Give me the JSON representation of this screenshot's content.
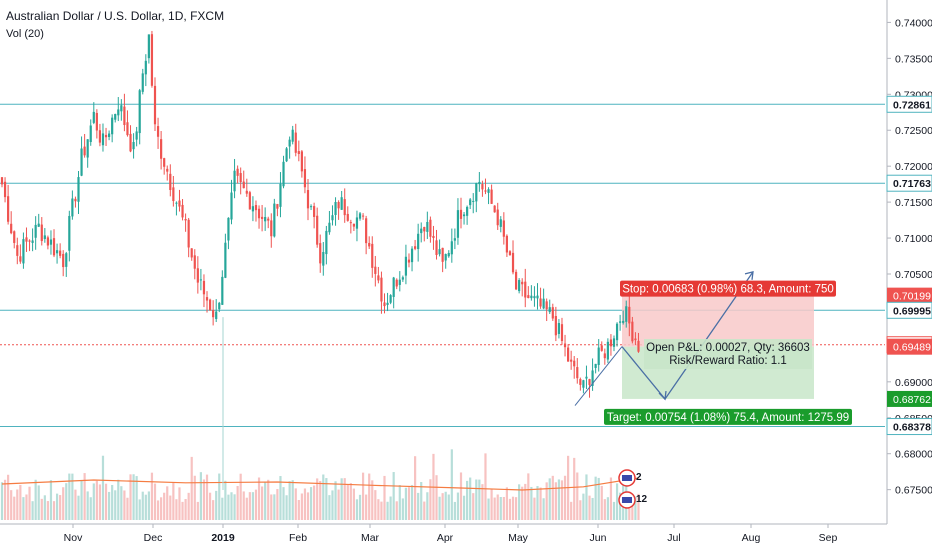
{
  "legend": {
    "title": "Australian Dollar / U.S. Dollar, 1D, FXCM",
    "volume_label": "Vol (20)"
  },
  "colors": {
    "up": "#26a69a",
    "down": "#ef5350",
    "hline": "#4fb3bf",
    "current": "#ef5350",
    "vol_ma": "#f57c42",
    "stop_fill": "#f8c9c9",
    "target_fill": "#c8e6c9",
    "stop_label": "#e53935",
    "target_label": "#1a9c2c"
  },
  "chart_data": {
    "type": "candlestick",
    "x_ticks": [
      "Nov",
      "Dec",
      "2019",
      "Feb",
      "Mar",
      "Apr",
      "May",
      "Jun",
      "Jul",
      "Aug",
      "Sep"
    ],
    "y_ticks": [
      "0.74000",
      "0.73500",
      "0.73000",
      "0.72500",
      "0.72000",
      "0.71500",
      "0.71000",
      "0.70500",
      "0.70000",
      "0.69000",
      "0.68500",
      "0.68000",
      "0.67500"
    ],
    "ylim": [
      0.6705,
      0.7427
    ],
    "horizontal_levels": [
      0.72861,
      0.71763,
      0.69995,
      0.68378
    ],
    "current_price": 0.69516,
    "level_tags": [
      {
        "value": 0.72861,
        "text": "0.72861",
        "style": "line"
      },
      {
        "value": 0.71763,
        "text": "0.71763",
        "style": "line"
      },
      {
        "value": 0.70199,
        "text": "0.70199",
        "style": "stop"
      },
      {
        "value": 0.69995,
        "text": "0.69995",
        "style": "line"
      },
      {
        "value": 0.69516,
        "text": "0.69516",
        "style": "current"
      },
      {
        "value": 0.69489,
        "text": "0.69489",
        "style": "entry"
      },
      {
        "value": 0.68762,
        "text": "0.68762",
        "style": "target"
      },
      {
        "value": 0.68378,
        "text": "0.68378",
        "style": "line"
      }
    ],
    "anchors": [
      [
        0,
        0.7175
      ],
      [
        5,
        0.7075
      ],
      [
        12,
        0.7115
      ],
      [
        20,
        0.707
      ],
      [
        26,
        0.721
      ],
      [
        30,
        0.727
      ],
      [
        33,
        0.723
      ],
      [
        38,
        0.729
      ],
      [
        43,
        0.722
      ],
      [
        46,
        0.733
      ],
      [
        48,
        0.738
      ],
      [
        50,
        0.725
      ],
      [
        55,
        0.718
      ],
      [
        60,
        0.711
      ],
      [
        64,
        0.704
      ],
      [
        70,
        0.699
      ],
      [
        76,
        0.718
      ],
      [
        82,
        0.715
      ],
      [
        88,
        0.711
      ],
      [
        94,
        0.725
      ],
      [
        98,
        0.719
      ],
      [
        104,
        0.708
      ],
      [
        110,
        0.715
      ],
      [
        118,
        0.712
      ],
      [
        125,
        0.701
      ],
      [
        132,
        0.707
      ],
      [
        138,
        0.7125
      ],
      [
        144,
        0.706
      ],
      [
        150,
        0.714
      ],
      [
        156,
        0.718
      ],
      [
        162,
        0.713
      ],
      [
        168,
        0.703
      ],
      [
        174,
        0.701
      ],
      [
        180,
        0.699
      ],
      [
        186,
        0.692
      ],
      [
        190,
        0.689
      ],
      [
        193,
        0.692
      ],
      [
        198,
        0.695
      ],
      [
        203,
        0.7
      ],
      [
        208,
        0.6952
      ]
    ],
    "volume": {
      "label": "Vol (20)",
      "ma_anchors": [
        [
          0,
          0.45
        ],
        [
          30,
          0.55
        ],
        [
          60,
          0.48
        ],
        [
          90,
          0.5
        ],
        [
          120,
          0.42
        ],
        [
          150,
          0.35
        ],
        [
          170,
          0.3
        ],
        [
          190,
          0.38
        ],
        [
          208,
          0.6
        ]
      ]
    },
    "position": {
      "entry": 0.69489,
      "stop": 0.70199,
      "target": 0.68762,
      "stop_label": "Stop: 0.00683 (0.98%) 68.3, Amount: 750",
      "pnl_label": "Open P&L: 0.00027, Qty: 36603",
      "rr_label": "Risk/Reward Ratio: 1.1",
      "target_label": "Target: 0.00754 (1.08%) 75.4, Amount: 1275.99"
    },
    "event_badges": [
      "2",
      "12"
    ]
  }
}
